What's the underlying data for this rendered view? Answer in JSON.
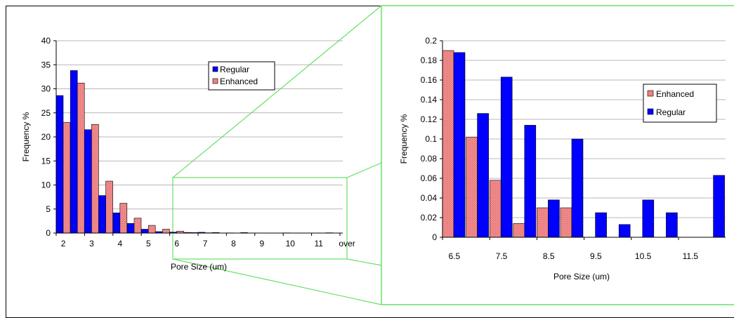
{
  "colors": {
    "regular": "#0000ff",
    "enhanced": "#f08080",
    "connector": "#66e066",
    "grid": "#a0a0a0"
  },
  "chart_data": [
    {
      "type": "bar",
      "categories": [
        "2",
        "2.5",
        "3",
        "3.5",
        "4",
        "4.5",
        "5",
        "5.5",
        "6",
        "6.5",
        "7",
        "7.5",
        "8",
        "8.5",
        "9",
        "9.5",
        "10",
        "10.5",
        "11",
        "11.5",
        "over"
      ],
      "tick_labels": [
        "2",
        "3",
        "4",
        "5",
        "6",
        "7",
        "8",
        "9",
        "10",
        "11",
        "over"
      ],
      "series": [
        {
          "name": "Regular",
          "values": [
            28.6,
            33.8,
            21.5,
            7.8,
            4.2,
            2.0,
            0.8,
            0.3,
            0.19,
            0.13,
            0.16,
            0.11,
            0.04,
            0.1,
            0.03,
            0.01,
            0.04,
            0.03,
            0.0,
            0.06,
            0.0
          ]
        },
        {
          "name": "Enhanced",
          "values": [
            23.0,
            31.2,
            22.6,
            10.8,
            6.2,
            3.1,
            1.6,
            0.8,
            0.4,
            0.1,
            0.06,
            0.014,
            0.03,
            0.03,
            0.0,
            0.0,
            0.0,
            0.0,
            0.0,
            0.0,
            0.0
          ]
        }
      ],
      "xlabel": "Pore Size (um)",
      "ylabel": "Frequency %",
      "ylim": [
        0,
        40
      ],
      "yticks": [
        "0",
        "5",
        "10",
        "15",
        "20",
        "25",
        "30",
        "35",
        "40"
      ],
      "grid": true,
      "legend": [
        "Regular",
        "Enhanced"
      ],
      "legend_position": "top-right"
    },
    {
      "type": "bar",
      "categories": [
        "6.5",
        "7",
        "7.5",
        "8",
        "8.5",
        "9",
        "9.5",
        "10",
        "10.5",
        "11",
        "11.5",
        "12"
      ],
      "tick_labels": [
        "6.5",
        "7.5",
        "8.5",
        "9.5",
        "10.5",
        "11.5"
      ],
      "series": [
        {
          "name": "Enhanced",
          "values": [
            0.19,
            0.102,
            0.058,
            0.014,
            0.03,
            0.03,
            0.0,
            0.0,
            0.0,
            0.0,
            0.0,
            0.0
          ]
        },
        {
          "name": "Regular",
          "values": [
            0.188,
            0.126,
            0.163,
            0.114,
            0.038,
            0.1,
            0.025,
            0.013,
            0.038,
            0.025,
            0.0,
            0.063
          ]
        }
      ],
      "xlabel": "Pore Size (um)",
      "ylabel": "Frequency %",
      "ylim": [
        0,
        0.2
      ],
      "yticks": [
        "0",
        "0.02",
        "0.04",
        "0.06",
        "0.08",
        "0.1",
        "0.12",
        "0.14",
        "0.16",
        "0.18",
        "0.2"
      ],
      "grid": true,
      "legend": [
        "Enhanced",
        "Regular"
      ],
      "legend_position": "right"
    }
  ]
}
